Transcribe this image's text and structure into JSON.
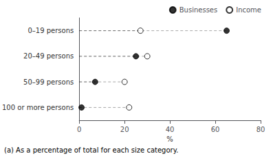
{
  "chart_data": {
    "type": "dot",
    "orientation": "horizontal",
    "categories": [
      "0–19 persons",
      "20–49 persons",
      "50–99 persons",
      "100 or more persons"
    ],
    "series": [
      {
        "name": "Businesses",
        "color": "#000000",
        "marker": "circle",
        "values": [
          65,
          25,
          7,
          1
        ]
      },
      {
        "name": "Income",
        "color": "#000000",
        "marker": "open",
        "values": [
          27,
          30,
          20,
          22
        ]
      }
    ],
    "xlabel": "%",
    "xlim": [
      0,
      80
    ],
    "xticks": [
      0,
      20,
      40,
      60,
      80
    ],
    "line_style": "dashed",
    "grid": false,
    "legend": "upper right",
    "annotations": [
      "(a) As a percentage of total for each size category."
    ]
  }
}
